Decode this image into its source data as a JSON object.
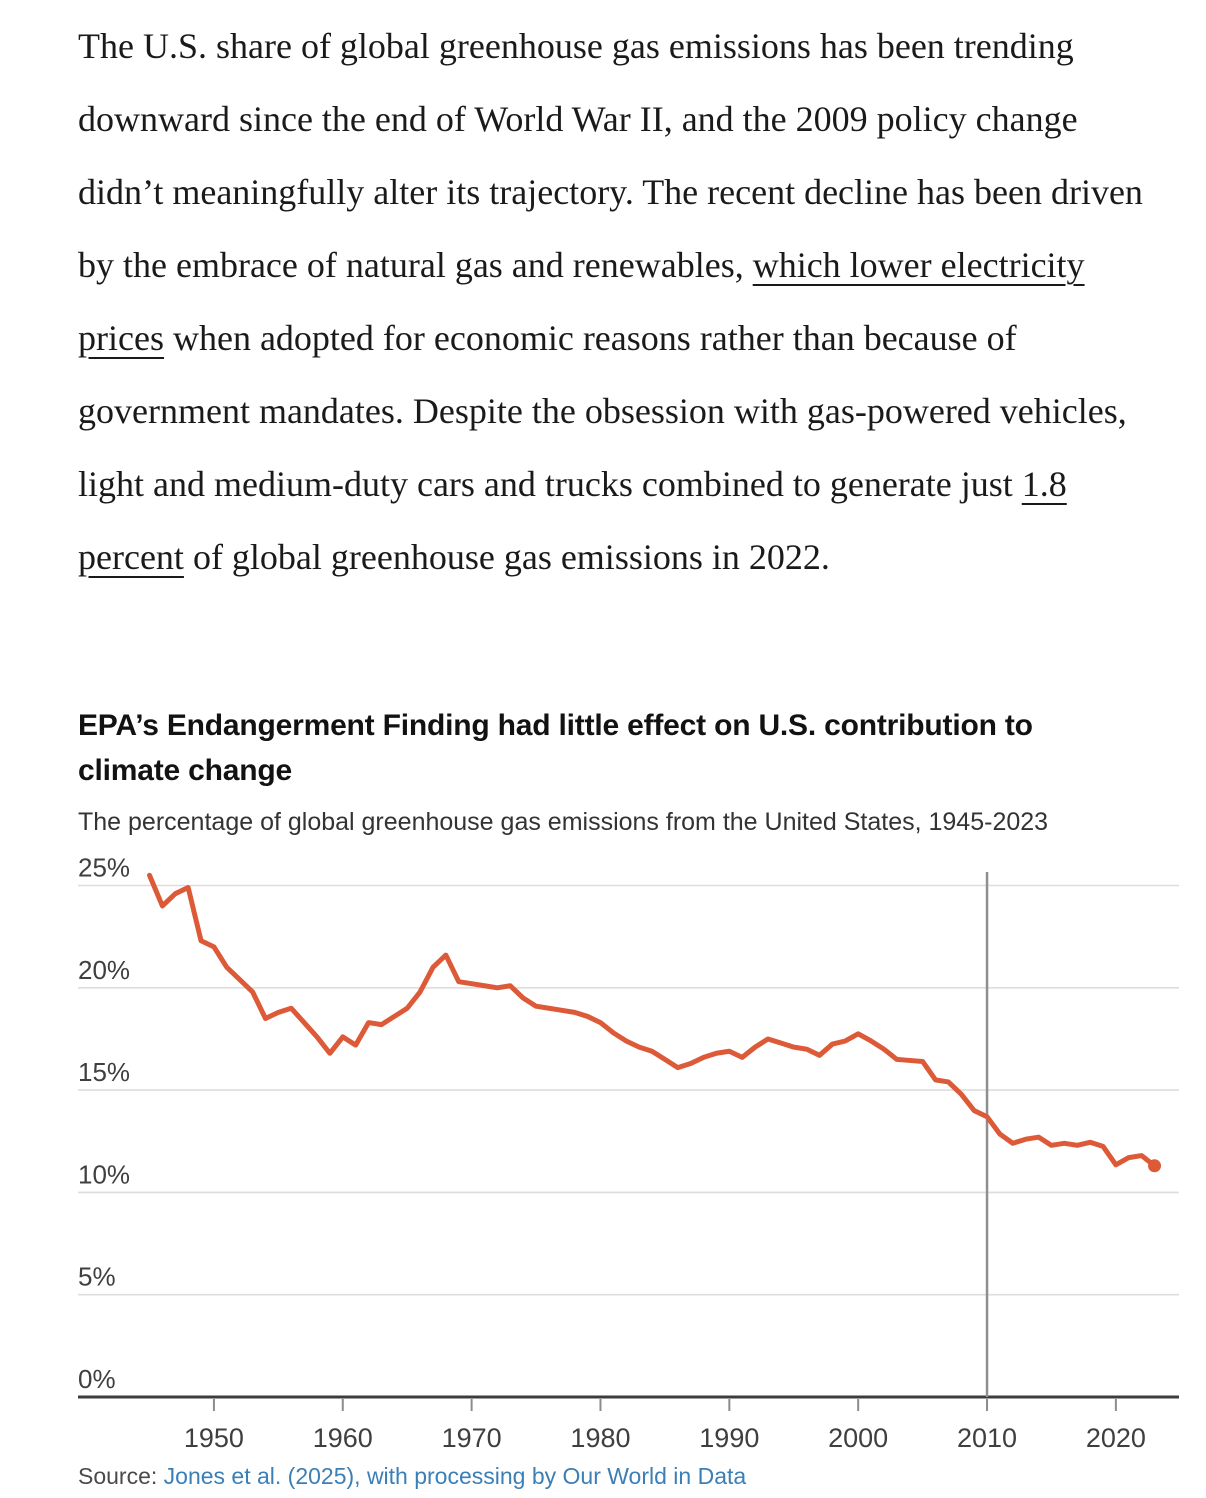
{
  "article": {
    "paragraph_segments": [
      {
        "text": "The U.S. share of global greenhouse gas emissions has been trending downward since the end of World War II, and the 2009 policy change didn’t meaningfully alter its trajectory. The recent decline has been driven by the embrace of natural gas and renewables, ",
        "link": false
      },
      {
        "text": "which lower electricity prices",
        "link": true,
        "name": "inline-link-electricity-prices"
      },
      {
        "text": " when adopted for economic reasons rather than because of government mandates. Despite the obsession with gas-powered vehicles, light and medium-duty cars and trucks combined to generate just ",
        "link": false
      },
      {
        "text": "1.8 percent",
        "link": true,
        "name": "inline-link-1-8-percent"
      },
      {
        "text": " of global greenhouse gas emissions in 2022.",
        "link": false
      }
    ]
  },
  "source": {
    "prefix": "Source: ",
    "link_text": "Jones et al. (2025), with processing by Our World in Data"
  },
  "colors": {
    "accent_line": "#dc5a38",
    "link_blue": "#3b7fb7",
    "grid_gray": "#dddddd",
    "axis_dark": "#3c3c3c",
    "tick_gray": "#8c8c8c",
    "vline_gray": "#8f8f8f",
    "label_gray": "#3f3f3f"
  },
  "chart_data": {
    "type": "line",
    "title": "EPA’s Endangerment Finding had little effect on U.S. contribution to climate change",
    "subtitle": "The percentage of global greenhouse gas emissions from the United States, 1945-2023",
    "x": [
      1945,
      1946,
      1947,
      1948,
      1949,
      1950,
      1951,
      1952,
      1953,
      1954,
      1955,
      1956,
      1957,
      1958,
      1959,
      1960,
      1961,
      1962,
      1963,
      1964,
      1965,
      1966,
      1967,
      1968,
      1969,
      1970,
      1971,
      1972,
      1973,
      1974,
      1975,
      1976,
      1977,
      1978,
      1979,
      1980,
      1981,
      1982,
      1983,
      1984,
      1985,
      1986,
      1987,
      1988,
      1989,
      1990,
      1991,
      1992,
      1993,
      1994,
      1995,
      1996,
      1997,
      1998,
      1999,
      2000,
      2001,
      2002,
      2003,
      2004,
      2005,
      2006,
      2007,
      2008,
      2009,
      2010,
      2011,
      2012,
      2013,
      2014,
      2015,
      2016,
      2017,
      2018,
      2019,
      2020,
      2021,
      2022,
      2023
    ],
    "series": [
      {
        "name": "United States",
        "values": [
          25.5,
          24.0,
          24.6,
          24.9,
          22.3,
          22.0,
          21.0,
          20.4,
          19.8,
          18.5,
          18.8,
          19.0,
          18.3,
          17.6,
          16.8,
          17.6,
          17.2,
          18.3,
          18.2,
          18.6,
          19.0,
          19.8,
          21.0,
          21.6,
          20.3,
          20.2,
          20.1,
          20.0,
          20.1,
          19.5,
          19.1,
          19.0,
          18.9,
          18.8,
          18.6,
          18.3,
          17.8,
          17.4,
          17.1,
          16.9,
          16.5,
          16.1,
          16.3,
          16.6,
          16.8,
          16.9,
          16.6,
          17.1,
          17.5,
          17.3,
          17.1,
          17.0,
          16.7,
          17.25,
          17.4,
          17.75,
          17.4,
          17.0,
          16.5,
          16.45,
          16.4,
          15.5,
          15.4,
          14.8,
          14.0,
          13.7,
          12.85,
          12.4,
          12.6,
          12.7,
          12.3,
          12.4,
          12.3,
          12.45,
          12.25,
          11.35,
          11.7,
          11.8,
          11.3
        ]
      }
    ],
    "xlabel": "",
    "ylabel": "",
    "ylim": [
      0,
      25
    ],
    "xlim": [
      1945,
      2023
    ],
    "ytick_values": [
      0,
      5,
      10,
      15,
      20,
      25
    ],
    "yticks": [
      "0%",
      "5%",
      "10%",
      "15%",
      "20%",
      "25%"
    ],
    "xticks": [
      1950,
      1960,
      1970,
      1980,
      1990,
      2000,
      2010,
      2020
    ],
    "grid": true,
    "legend": false,
    "end_marker": true,
    "annotations": [
      {
        "type": "vline",
        "x": 2010
      }
    ]
  }
}
